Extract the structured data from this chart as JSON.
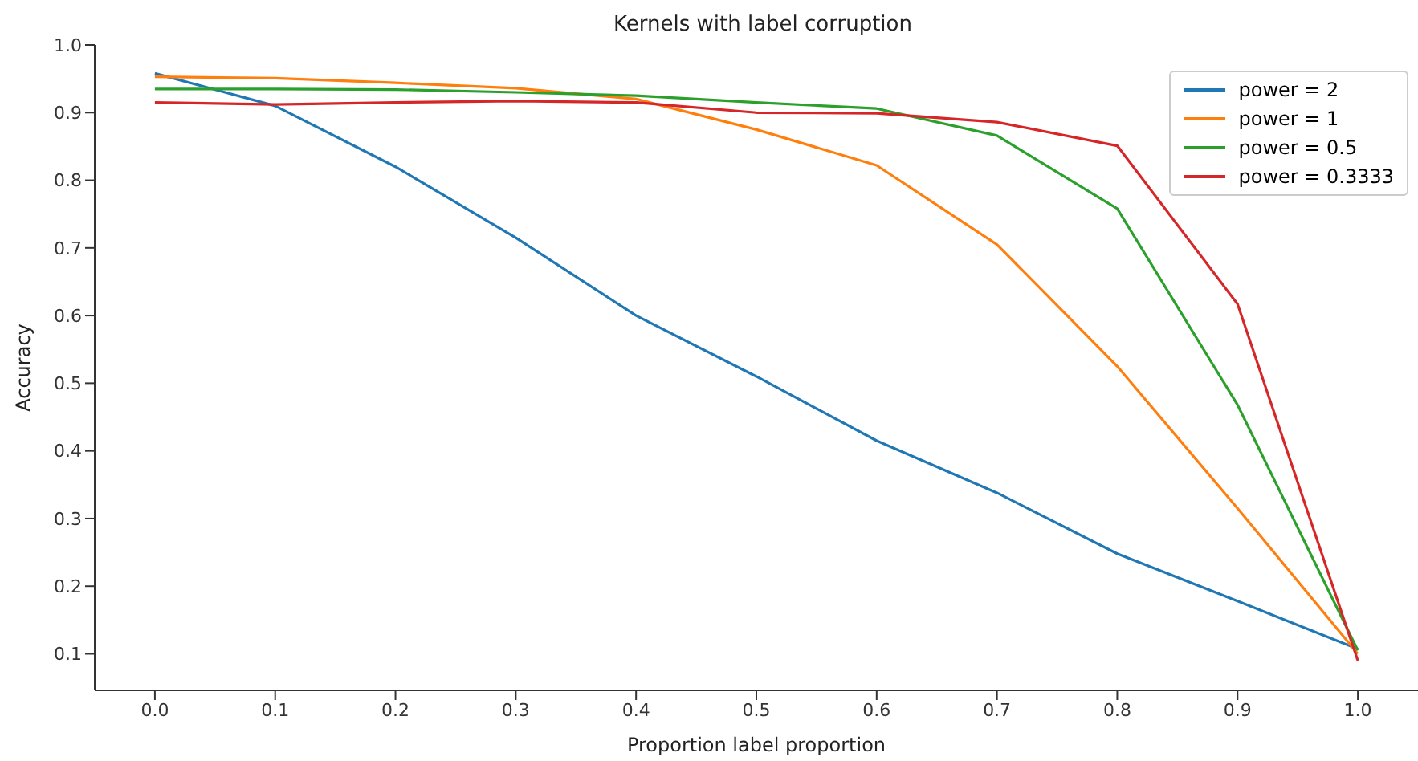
{
  "chart_data": {
    "type": "line",
    "title": "Kernels with label corruption",
    "xlabel": "Proportion label proportion",
    "ylabel": "Accuracy",
    "x": [
      0.0,
      0.1,
      0.2,
      0.3,
      0.4,
      0.5,
      0.6,
      0.7,
      0.8,
      0.9,
      1.0
    ],
    "series": [
      {
        "name": "power = 2",
        "color": "#1f77b4",
        "values": [
          0.958,
          0.91,
          0.82,
          0.715,
          0.6,
          0.51,
          0.415,
          0.338,
          0.248,
          0.178,
          0.107
        ]
      },
      {
        "name": "power = 1",
        "color": "#ff7f0e",
        "values": [
          0.953,
          0.951,
          0.944,
          0.936,
          0.92,
          0.875,
          0.822,
          0.705,
          0.525,
          0.315,
          0.1
        ]
      },
      {
        "name": "power = 0.5",
        "color": "#2ca02c",
        "values": [
          0.935,
          0.935,
          0.934,
          0.93,
          0.925,
          0.915,
          0.906,
          0.866,
          0.758,
          0.468,
          0.105
        ]
      },
      {
        "name": "power = 0.3333",
        "color": "#d62728",
        "values": [
          0.915,
          0.912,
          0.915,
          0.917,
          0.915,
          0.9,
          0.899,
          0.886,
          0.851,
          0.617,
          0.09
        ]
      }
    ],
    "xlim": [
      -0.05,
      1.05
    ],
    "xticks": [
      {
        "value": 0,
        "label": "0.0"
      },
      0.1,
      0.2,
      0.3,
      0.4,
      0.5,
      0.6,
      0.7,
      0.8,
      0.9,
      {
        "value": 1,
        "label": "1.0"
      }
    ],
    "ylim": [
      0.046,
      1.0
    ],
    "yticks": [
      0.1,
      0.2,
      0.3,
      0.4,
      0.5,
      0.6,
      0.7,
      0.8,
      0.9,
      {
        "value": 1,
        "label": "1.0"
      }
    ],
    "grid": false,
    "legend": "top right",
    "marker": "none",
    "line_style": "solid"
  }
}
